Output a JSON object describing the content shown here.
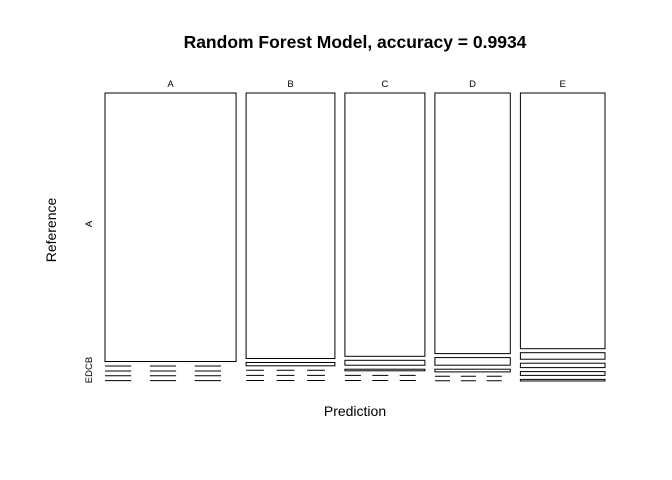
{
  "chart_data": {
    "type": "mosaic",
    "title": "Random Forest Model, accuracy =  0.9934",
    "xlabel": "Prediction",
    "ylabel": "Reference",
    "x_categories": [
      "A",
      "B",
      "C",
      "D",
      "E"
    ],
    "y_categories": [
      "A",
      "B",
      "C",
      "D",
      "E"
    ],
    "y_tick_main": "A",
    "y_tick_stacked": "EDCB",
    "column_totals": [
      0.285,
      0.193,
      0.174,
      0.164,
      0.184
    ],
    "cell_shares": [
      [
        0.987,
        0.004,
        0.003,
        0.003,
        0.003
      ],
      [
        0.976,
        0.012,
        0.004,
        0.004,
        0.004
      ],
      [
        0.968,
        0.018,
        0.006,
        0.004,
        0.004
      ],
      [
        0.958,
        0.028,
        0.01,
        0.002,
        0.002
      ],
      [
        0.94,
        0.024,
        0.016,
        0.014,
        0.006
      ]
    ]
  }
}
